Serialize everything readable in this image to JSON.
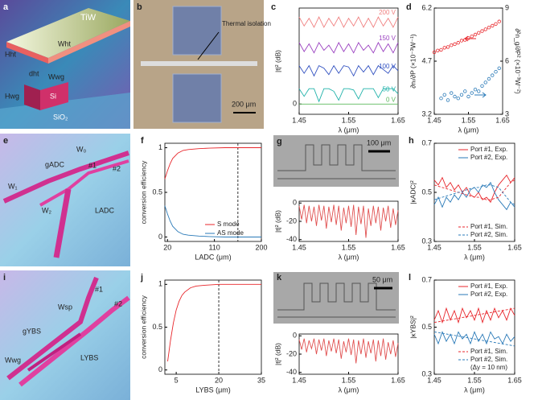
{
  "chart_data": [
    {
      "type": "line",
      "label": "c",
      "ylabel": "|t|² (dB)",
      "xlabel": "λ (μm)",
      "xlim": [
        1.45,
        1.65
      ],
      "xticks": [
        1.45,
        1.55,
        1.65
      ],
      "ylim": [
        -8,
        75
      ],
      "yticks": [
        0
      ],
      "legend": "inline",
      "x": [
        1.45,
        1.46,
        1.47,
        1.48,
        1.49,
        1.5,
        1.51,
        1.52,
        1.53,
        1.54,
        1.55,
        1.56,
        1.57,
        1.58,
        1.59,
        1.6,
        1.61,
        1.62,
        1.63,
        1.64,
        1.65
      ],
      "series": [
        {
          "name": "0 V",
          "color": "#5cb85c",
          "values": [
            0,
            0,
            0,
            0,
            0,
            0,
            0,
            0,
            0,
            0,
            0,
            0,
            0,
            0,
            0,
            0,
            0,
            0,
            0,
            0,
            0
          ]
        },
        {
          "name": "50 V",
          "color": "#20b2aa",
          "values": [
            12,
            6,
            12,
            12,
            2,
            12,
            12,
            10,
            3,
            12,
            12,
            11,
            4,
            12,
            12,
            12,
            5,
            12,
            12,
            12,
            8
          ]
        },
        {
          "name": "100 V",
          "color": "#3050c0",
          "values": [
            30,
            24,
            30,
            22,
            30,
            28,
            23,
            30,
            24,
            30,
            29,
            22,
            30,
            25,
            30,
            23,
            30,
            27,
            24,
            30,
            26
          ]
        },
        {
          "name": "150 V",
          "color": "#9a40c0",
          "values": [
            48,
            41,
            47,
            40,
            48,
            42,
            46,
            40,
            48,
            41,
            47,
            40,
            48,
            42,
            46,
            40,
            48,
            41,
            47,
            40,
            48
          ]
        },
        {
          "name": "200 V",
          "color": "#f08080",
          "values": [
            68,
            61,
            67,
            60,
            68,
            60,
            67,
            61,
            68,
            60,
            67,
            61,
            68,
            60,
            67,
            60,
            68,
            61,
            67,
            60,
            68
          ]
        }
      ]
    },
    {
      "type": "scatter",
      "label": "d",
      "ylabel": "∂nₗ/∂P (×10⁻³W⁻¹)",
      "y2label": "∂²n_g/∂P² (×10⁻³W⁻²)",
      "xlabel": "λ (μm)",
      "xlim": [
        1.45,
        1.65
      ],
      "xticks": [
        1.45,
        1.55,
        1.65
      ],
      "ylim": [
        3.2,
        6.2
      ],
      "yticks": [
        3.2,
        4.7,
        6.2
      ],
      "y2lim": [
        3,
        9
      ],
      "y2ticks": [
        3,
        6,
        9
      ],
      "series": [
        {
          "color": "#e8262b",
          "x": [
            1.45,
            1.46,
            1.47,
            1.48,
            1.49,
            1.5,
            1.51,
            1.52,
            1.53,
            1.54,
            1.55,
            1.56,
            1.57,
            1.58,
            1.59,
            1.6,
            1.61,
            1.62,
            1.63,
            1.64
          ],
          "values": [
            4.95,
            5.0,
            5.02,
            5.08,
            5.1,
            5.15,
            5.18,
            5.22,
            5.28,
            5.3,
            5.35,
            5.4,
            5.45,
            5.5,
            5.55,
            5.6,
            5.65,
            5.7,
            5.75,
            5.82
          ]
        },
        {
          "color": "#2a7ab8",
          "axis": "y2",
          "x": [
            1.47,
            1.48,
            1.49,
            1.5,
            1.51,
            1.52,
            1.53,
            1.54,
            1.55,
            1.56,
            1.57,
            1.58,
            1.59,
            1.6,
            1.61,
            1.62,
            1.63,
            1.64
          ],
          "values": [
            3.9,
            4.1,
            3.8,
            4.2,
            4.0,
            3.9,
            4.1,
            4.3,
            4.0,
            4.2,
            4.4,
            4.3,
            4.6,
            4.8,
            5.0,
            5.2,
            5.4,
            5.6
          ]
        }
      ]
    },
    {
      "type": "line",
      "label": "f",
      "ylabel": "conversion efficiency",
      "xlabel": "LADC (μm)",
      "xlim": [
        15,
        200
      ],
      "xticks": [
        20,
        110,
        200
      ],
      "ylim": [
        -0.05,
        1.05
      ],
      "yticks": [
        0,
        0.5,
        1
      ],
      "vline": 155,
      "legend": "lower right",
      "x": [
        15,
        20,
        25,
        30,
        40,
        50,
        60,
        80,
        100,
        130,
        160,
        200
      ],
      "series": [
        {
          "name": "S mode",
          "color": "#e8262b",
          "values": [
            0.65,
            0.74,
            0.82,
            0.88,
            0.94,
            0.97,
            0.98,
            0.99,
            0.995,
            1,
            1,
            1
          ]
        },
        {
          "name": "AS mode",
          "color": "#2a7ab8",
          "values": [
            0.35,
            0.26,
            0.18,
            0.12,
            0.06,
            0.03,
            0.02,
            0.01,
            0.005,
            0,
            0,
            0
          ]
        }
      ]
    },
    {
      "type": "line",
      "label": "g",
      "ylabel": "|t|² (dB)",
      "xlabel": "λ (μm)",
      "xlim": [
        1.45,
        1.65
      ],
      "xticks": [
        1.45,
        1.55,
        1.65
      ],
      "ylim": [
        -42,
        2
      ],
      "yticks": [
        -40,
        -20,
        0
      ],
      "x": [
        1.45,
        1.455,
        1.46,
        1.465,
        1.47,
        1.475,
        1.48,
        1.485,
        1.49,
        1.495,
        1.5,
        1.505,
        1.51,
        1.515,
        1.52,
        1.525,
        1.53,
        1.535,
        1.54,
        1.545,
        1.55,
        1.555,
        1.56,
        1.565,
        1.57,
        1.575,
        1.58,
        1.585,
        1.59,
        1.595,
        1.6,
        1.605,
        1.61,
        1.615,
        1.62,
        1.625,
        1.63,
        1.635,
        1.64,
        1.645,
        1.65
      ],
      "series": [
        {
          "color": "#e05050",
          "values": [
            -3,
            -18,
            -2,
            -22,
            -3,
            -20,
            -4,
            -25,
            -2,
            -19,
            -3,
            -28,
            -4,
            -21,
            -2,
            -24,
            -3,
            -30,
            -5,
            -22,
            -3,
            -26,
            -2,
            -35,
            -4,
            -23,
            -3,
            -38,
            -6,
            -25,
            -3,
            -22,
            -4,
            -30,
            -5,
            -20,
            -3,
            -27,
            -6,
            -24,
            -8
          ]
        }
      ]
    },
    {
      "type": "line",
      "label": "h",
      "ylabel": "|κADC|²",
      "xlabel": "λ (μm)",
      "xlim": [
        1.45,
        1.65
      ],
      "xticks": [
        1.45,
        1.55,
        1.65
      ],
      "ylim": [
        0.3,
        0.7
      ],
      "yticks": [
        0.3,
        0.5,
        0.7
      ],
      "legend": "split",
      "x": [
        1.45,
        1.46,
        1.47,
        1.48,
        1.49,
        1.5,
        1.51,
        1.52,
        1.53,
        1.54,
        1.55,
        1.56,
        1.57,
        1.58,
        1.59,
        1.6,
        1.61,
        1.62,
        1.63,
        1.64,
        1.65
      ],
      "series": [
        {
          "name": "Port #1, Exp.",
          "color": "#e8262b",
          "values": [
            0.55,
            0.53,
            0.56,
            0.52,
            0.54,
            0.51,
            0.53,
            0.5,
            0.52,
            0.49,
            0.48,
            0.5,
            0.47,
            0.48,
            0.46,
            0.5,
            0.53,
            0.55,
            0.57,
            0.54,
            0.56
          ]
        },
        {
          "name": "Port #2, Exp.",
          "color": "#2a7ab8",
          "values": [
            0.45,
            0.48,
            0.44,
            0.48,
            0.46,
            0.49,
            0.47,
            0.5,
            0.48,
            0.51,
            0.52,
            0.5,
            0.53,
            0.52,
            0.54,
            0.5,
            0.47,
            0.45,
            0.43,
            0.46,
            0.44
          ]
        },
        {
          "name": "Port #1, Sim.",
          "color": "#e8262b",
          "dash": true,
          "values": [
            0.53,
            0.525,
            0.52,
            0.515,
            0.51,
            0.505,
            0.5,
            0.495,
            0.49,
            0.485,
            0.48,
            0.48,
            0.475,
            0.47,
            0.47,
            0.475,
            0.48,
            0.5,
            0.52,
            0.54,
            0.55
          ]
        },
        {
          "name": "Port #2, Sim.",
          "color": "#2a7ab8",
          "dash": true,
          "values": [
            0.47,
            0.475,
            0.48,
            0.485,
            0.49,
            0.495,
            0.5,
            0.505,
            0.51,
            0.515,
            0.52,
            0.52,
            0.525,
            0.53,
            0.53,
            0.525,
            0.52,
            0.5,
            0.48,
            0.46,
            0.45
          ]
        }
      ]
    },
    {
      "type": "line",
      "label": "j",
      "ylabel": "conversion efficiency",
      "xlabel": "LYBS (μm)",
      "xlim": [
        1,
        35
      ],
      "xticks": [
        5,
        20,
        35
      ],
      "ylim": [
        -0.05,
        1.05
      ],
      "yticks": [
        0,
        0.5,
        1
      ],
      "vline": 20,
      "x": [
        2,
        3,
        4,
        5,
        6,
        7,
        8,
        10,
        12,
        15,
        20,
        25,
        30,
        35
      ],
      "series": [
        {
          "color": "#e8262b",
          "values": [
            0.1,
            0.35,
            0.55,
            0.7,
            0.8,
            0.87,
            0.91,
            0.96,
            0.98,
            0.99,
            1,
            1,
            1,
            1
          ]
        }
      ]
    },
    {
      "type": "line",
      "label": "k",
      "ylabel": "|t|² (dB)",
      "xlabel": "λ (μm)",
      "xlim": [
        1.45,
        1.65
      ],
      "xticks": [
        1.45,
        1.55,
        1.65
      ],
      "ylim": [
        -42,
        2
      ],
      "yticks": [
        -40,
        -20,
        0
      ],
      "x": [
        1.45,
        1.455,
        1.46,
        1.465,
        1.47,
        1.475,
        1.48,
        1.485,
        1.49,
        1.495,
        1.5,
        1.505,
        1.51,
        1.515,
        1.52,
        1.525,
        1.53,
        1.535,
        1.54,
        1.545,
        1.55,
        1.555,
        1.56,
        1.565,
        1.57,
        1.575,
        1.58,
        1.585,
        1.59,
        1.595,
        1.6,
        1.605,
        1.61,
        1.615,
        1.62,
        1.625,
        1.63,
        1.635,
        1.64,
        1.645,
        1.65
      ],
      "series": [
        {
          "color": "#e05050",
          "values": [
            -4,
            -15,
            -3,
            -18,
            -5,
            -14,
            -3,
            -20,
            -4,
            -16,
            -3,
            -22,
            -5,
            -17,
            -3,
            -19,
            -4,
            -25,
            -6,
            -18,
            -3,
            -21,
            -4,
            -30,
            -5,
            -20,
            -3,
            -24,
            -6,
            -19,
            -4,
            -28,
            -5,
            -22,
            -3,
            -26,
            -7,
            -20,
            -5,
            -23,
            -8
          ]
        }
      ]
    },
    {
      "type": "line",
      "label": "l",
      "ylabel": "|κYBS|²",
      "xlabel": "λ (μm)",
      "xlim": [
        1.45,
        1.65
      ],
      "xticks": [
        1.45,
        1.55,
        1.65
      ],
      "ylim": [
        0.3,
        0.7
      ],
      "yticks": [
        0.3,
        0.5,
        0.7
      ],
      "legend": "split",
      "annotation": "(Δy = 10 nm)",
      "x": [
        1.45,
        1.46,
        1.47,
        1.48,
        1.49,
        1.5,
        1.51,
        1.52,
        1.53,
        1.54,
        1.55,
        1.56,
        1.57,
        1.58,
        1.59,
        1.6,
        1.61,
        1.62,
        1.63,
        1.64,
        1.65
      ],
      "series": [
        {
          "name": "Port #1, Exp.",
          "color": "#e8262b",
          "values": [
            0.53,
            0.57,
            0.52,
            0.58,
            0.53,
            0.57,
            0.52,
            0.58,
            0.54,
            0.57,
            0.53,
            0.58,
            0.52,
            0.57,
            0.53,
            0.58,
            0.54,
            0.57,
            0.53,
            0.58,
            0.55
          ]
        },
        {
          "name": "Port #2, Exp.",
          "color": "#2a7ab8",
          "values": [
            0.47,
            0.43,
            0.48,
            0.44,
            0.47,
            0.43,
            0.48,
            0.45,
            0.47,
            0.43,
            0.48,
            0.44,
            0.47,
            0.43,
            0.48,
            0.45,
            0.46,
            0.43,
            0.47,
            0.44,
            0.46
          ]
        },
        {
          "name": "Port #1, Sim.",
          "color": "#e8262b",
          "dash": true,
          "values": [
            0.52,
            0.523,
            0.526,
            0.529,
            0.532,
            0.535,
            0.538,
            0.541,
            0.544,
            0.547,
            0.55,
            0.553,
            0.556,
            0.559,
            0.562,
            0.565,
            0.568,
            0.571,
            0.574,
            0.577,
            0.58
          ]
        },
        {
          "name": "Port #2, Sim.",
          "color": "#2a7ab8",
          "dash": true,
          "values": [
            0.48,
            0.477,
            0.474,
            0.471,
            0.468,
            0.465,
            0.462,
            0.459,
            0.456,
            0.453,
            0.45,
            0.447,
            0.444,
            0.441,
            0.438,
            0.435,
            0.432,
            0.429,
            0.426,
            0.423,
            0.42
          ]
        }
      ]
    }
  ],
  "illustrations": {
    "a": {
      "label": "a",
      "texts": [
        "TiW",
        "Wht",
        "Hht",
        "dht",
        "Wwg",
        "Hwg",
        "Si",
        "SiO₂"
      ]
    },
    "b": {
      "label": "b",
      "texts": [
        "Thermal isolation",
        "200 μm"
      ]
    },
    "e": {
      "label": "e",
      "texts": [
        "W₀",
        "gADC",
        "#1",
        "#2",
        "W₁",
        "W₂",
        "LADC"
      ]
    },
    "i": {
      "label": "i",
      "texts": [
        "Wsp",
        "gYBS",
        "#1",
        "#2",
        "Wwg",
        "LYBS"
      ]
    },
    "g": {
      "scale": "100 μm"
    },
    "k": {
      "scale": "50 μm"
    }
  }
}
